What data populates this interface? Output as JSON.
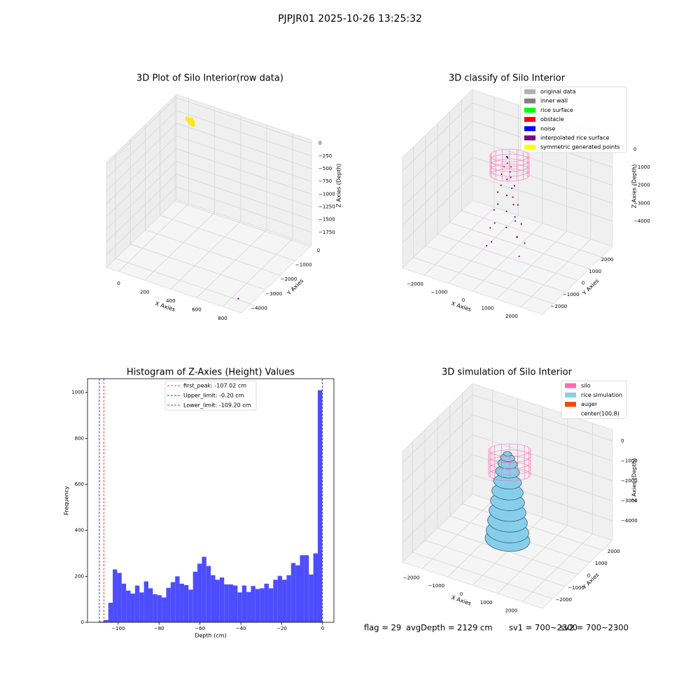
{
  "title": "PJPJR01 2025-10-26 13:25:32",
  "footer": [
    "flag = 29",
    "avgDepth = 2129 cm",
    "sv1 = 700~2300",
    "sv2 = 700~2300"
  ],
  "chart_data": [
    {
      "type": "scatter3d",
      "title": "3D Plot of Silo Interior(row data)",
      "xlabel": "X Axies",
      "ylabel": "Y Axies",
      "zlabel": "Z Axies (Depth)",
      "xlim": [
        -95,
        945
      ],
      "ylim": [
        -4610,
        95
      ],
      "zlim": [
        -2000,
        65
      ],
      "xticks": [
        0,
        200,
        400,
        600,
        800
      ],
      "yticks": [
        0,
        {
          "value": -1000,
          "label": "−1000"
        },
        {
          "value": -2000,
          "label": "−2000"
        },
        {
          "value": -3000,
          "label": "−3000"
        },
        {
          "value": -4000,
          "label": "−4000"
        }
      ],
      "zticks": [
        0,
        {
          "value": -250,
          "label": "−250"
        },
        {
          "value": -500,
          "label": "−500"
        },
        {
          "value": -750,
          "label": "−750"
        },
        {
          "value": -1000,
          "label": "−1000"
        },
        {
          "value": -1250,
          "label": "−1250"
        },
        {
          "value": -1500,
          "label": "−1500"
        },
        {
          "value": -1750,
          "label": "−1750"
        }
      ],
      "grid": true,
      "series": [
        {
          "color": "#fde725",
          "x": [
            0,
            20,
            40,
            60,
            30,
            50,
            10,
            45
          ],
          "y": [
            0,
            -50,
            -100,
            -150,
            0,
            -80,
            -30,
            -120
          ],
          "z": [
            -300,
            -310,
            -320,
            -330,
            -290,
            -300,
            -305,
            -315
          ]
        },
        {
          "color": "#440154",
          "x": [
            890
          ],
          "y": [
            -4350
          ],
          "z": [
            -1840
          ]
        }
      ]
    },
    {
      "type": "scatter3d",
      "title": "3D classify of Silo Interior",
      "xlabel": "X Axies",
      "ylabel": "Y Axies",
      "zlabel": "Z Axies (Depth)",
      "xlim": [
        -2900,
        2900
      ],
      "ylim": [
        -2900,
        2900
      ],
      "zlim": [
        -5400,
        750
      ],
      "xticks": [
        {
          "value": -2000,
          "label": "−2000"
        },
        {
          "value": -1000,
          "label": "−1000"
        },
        0,
        1000,
        2000
      ],
      "yticks": [
        {
          "value": -2000,
          "label": "−2000"
        },
        {
          "value": -1000,
          "label": "−1000"
        },
        0,
        1000,
        2000
      ],
      "zticks": [
        0,
        {
          "value": -1000,
          "label": "−1000"
        },
        {
          "value": -2000,
          "label": "−2000"
        },
        {
          "value": -3000,
          "label": "−3000"
        },
        {
          "value": -4000,
          "label": "−4000"
        }
      ],
      "grid": true,
      "legend": "upper right",
      "series": [
        {
          "name": "original data",
          "color": "#b0b0b0",
          "x": [],
          "y": [],
          "z": []
        },
        {
          "name": "inner wall",
          "color": "#808080",
          "x": [],
          "y": [],
          "z": []
        },
        {
          "name": "rice surface",
          "color": "#00ff00",
          "x": [],
          "y": [],
          "z": []
        },
        {
          "name": "obstacle",
          "color": "#ff0000",
          "x": [],
          "y": [],
          "z": []
        },
        {
          "name": "noise",
          "color": "#0000ff",
          "x": [
            -100,
            -60
          ],
          "y": [
            150,
            120
          ],
          "z": [
            50,
            30
          ]
        },
        {
          "name": "interpolated rice surface",
          "color": "#800080",
          "x": [
            150,
            -75,
            -75,
            0,
            190,
            -190,
            290,
            -145,
            -145,
            0,
            312,
            -312,
            430,
            -215,
            -215,
            0,
            433,
            -433,
            570,
            -285,
            -285,
            0,
            554,
            -554,
            710,
            -355,
            -355,
            0,
            675,
            -675
          ],
          "y": [
            0,
            130,
            -130,
            220,
            -110,
            -110,
            0,
            251,
            -251,
            360,
            -180,
            -180,
            0,
            372,
            -372,
            500,
            -250,
            -250,
            0,
            494,
            -494,
            640,
            -320,
            -320,
            0,
            615,
            -615,
            780,
            -390,
            -390
          ],
          "z": [
            -300,
            -300,
            -300,
            -800,
            -800,
            -800,
            -1300,
            -1300,
            -1300,
            -1800,
            -1800,
            -1800,
            -2300,
            -2300,
            -2300,
            -2800,
            -2800,
            -2800,
            -3300,
            -3300,
            -3300,
            -3800,
            -3800,
            -3800,
            -4300,
            -4300,
            -4300,
            -4800,
            -4800,
            -4800
          ]
        },
        {
          "name": "symmetric generated points",
          "color": "#ffff00",
          "x": [
            100,
            120
          ],
          "y": [
            -50,
            -80
          ],
          "z": [
            -100,
            -120
          ]
        }
      ]
    },
    {
      "type": "histogram",
      "title": "Histogram of Z-Axies (Height) Values",
      "xlabel": "Depth (cm)",
      "ylabel": "Frequency",
      "color": "#4d4dff",
      "xlim": [
        -115,
        5.5
      ],
      "ylim": [
        0,
        1060
      ],
      "xticks": [
        {
          "value": -100,
          "label": "−100"
        },
        {
          "value": -80,
          "label": "−80"
        },
        {
          "value": -60,
          "label": "−60"
        },
        {
          "value": -40,
          "label": "−40"
        },
        {
          "value": -20,
          "label": "−20"
        },
        0
      ],
      "yticks": [
        0,
        200,
        400,
        600,
        800,
        1000
      ],
      "bins": [
        -109.2,
        -107.02,
        -104.84,
        -102.66,
        -100.48,
        -98.3,
        -96.12,
        -93.94,
        -91.76,
        -89.58,
        -87.4,
        -85.22,
        -83.04,
        -80.86,
        -78.68,
        -76.5,
        -74.32,
        -72.14,
        -69.96,
        -67.78,
        -65.6,
        -63.42,
        -61.24,
        -59.06,
        -56.88,
        -54.7,
        -52.52,
        -50.34,
        -48.16,
        -45.98,
        -43.8,
        -41.62,
        -39.44,
        -37.26,
        -35.08,
        -32.9,
        -30.72,
        -28.54,
        -26.36,
        -24.18,
        -22.0,
        -19.82,
        -17.64,
        -15.46,
        -13.28,
        -11.1,
        -8.92,
        -6.74,
        -4.56,
        -2.38,
        -0.2
      ],
      "values": [
        3,
        10,
        85,
        230,
        215,
        168,
        138,
        125,
        160,
        130,
        178,
        148,
        122,
        118,
        108,
        150,
        175,
        200,
        168,
        162,
        142,
        220,
        255,
        285,
        245,
        205,
        185,
        195,
        165,
        165,
        160,
        130,
        160,
        132,
        158,
        145,
        148,
        168,
        148,
        185,
        202,
        185,
        205,
        258,
        248,
        292,
        292,
        208,
        300,
        1010
      ],
      "vlines": [
        {
          "label": "first_peak: -107.02 cm",
          "value": -107.02,
          "color": "#ff0000"
        },
        {
          "label": "Upper_limit: -0.20 cm",
          "value": -0.2,
          "color": "#00008b"
        },
        {
          "label": "Lower_limit: -109.20 cm",
          "value": -109.2,
          "color": "#0000ff"
        }
      ],
      "legend": "upper center"
    },
    {
      "type": "surface3d",
      "title": "3D simulation of Silo Interior",
      "xlabel": "X Axies",
      "ylabel": "Y Axies",
      "zlabel": "Z Axies (Depth)",
      "xlim": [
        -2800,
        2800
      ],
      "ylim": [
        -2800,
        2800
      ],
      "zlim": [
        -4980,
        560
      ],
      "xticks": [
        {
          "value": -2000,
          "label": "−2000"
        },
        {
          "value": -1000,
          "label": "−1000"
        },
        0,
        1000,
        2000
      ],
      "yticks": [
        {
          "value": -2000,
          "label": "−2000"
        },
        {
          "value": -1000,
          "label": "−1000"
        },
        0,
        1000,
        2000
      ],
      "zticks": [
        0,
        {
          "value": -1000,
          "label": "−1000"
        },
        {
          "value": -2000,
          "label": "−2000"
        },
        {
          "value": -3000,
          "label": "−3000"
        },
        {
          "value": -4000,
          "label": "−4000"
        }
      ],
      "grid": true,
      "legend": "upper right",
      "series": [
        {
          "name": "silo",
          "color": "#ff69b4"
        },
        {
          "name": "rice simulation",
          "color": "#87ceeb",
          "z": [
            -4400,
            -4000,
            -3500,
            -3000,
            -2500,
            -2000,
            -1500,
            -1000,
            -600,
            -300,
            -100
          ],
          "r": [
            800,
            760,
            710,
            660,
            610,
            560,
            500,
            430,
            350,
            260,
            150
          ]
        },
        {
          "name": "auger",
          "color": "#ff4500"
        },
        {
          "name": "center(100,8)",
          "color": "#ffffff"
        }
      ]
    }
  ]
}
